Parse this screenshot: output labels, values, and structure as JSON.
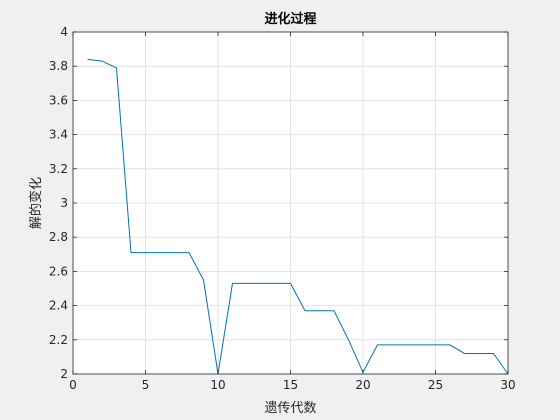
{
  "chart_data": {
    "type": "line",
    "title": "进化过程",
    "xlabel": "遗传代数",
    "ylabel": "解的变化",
    "xlim": [
      0,
      30
    ],
    "ylim": [
      2,
      4
    ],
    "xticks": [
      0,
      5,
      10,
      15,
      20,
      25,
      30
    ],
    "yticks": [
      2,
      2.2,
      2.4,
      2.6,
      2.8,
      3,
      3.2,
      3.4,
      3.6,
      3.8,
      4
    ],
    "grid": true,
    "series": [
      {
        "color": "#0072bd",
        "x": [
          1,
          2,
          3,
          4,
          5,
          6,
          7,
          8,
          9,
          10,
          11,
          12,
          13,
          14,
          15,
          16,
          17,
          18,
          19,
          20,
          21,
          22,
          23,
          24,
          25,
          26,
          27,
          28,
          29,
          30
        ],
        "y": [
          3.84,
          3.83,
          3.79,
          2.71,
          2.71,
          2.71,
          2.71,
          2.71,
          2.55,
          2.0,
          2.53,
          2.53,
          2.53,
          2.53,
          2.53,
          2.37,
          2.37,
          2.37,
          2.2,
          2.01,
          2.17,
          2.17,
          2.17,
          2.17,
          2.17,
          2.17,
          2.12,
          2.12,
          2.12,
          2.0
        ]
      }
    ]
  }
}
